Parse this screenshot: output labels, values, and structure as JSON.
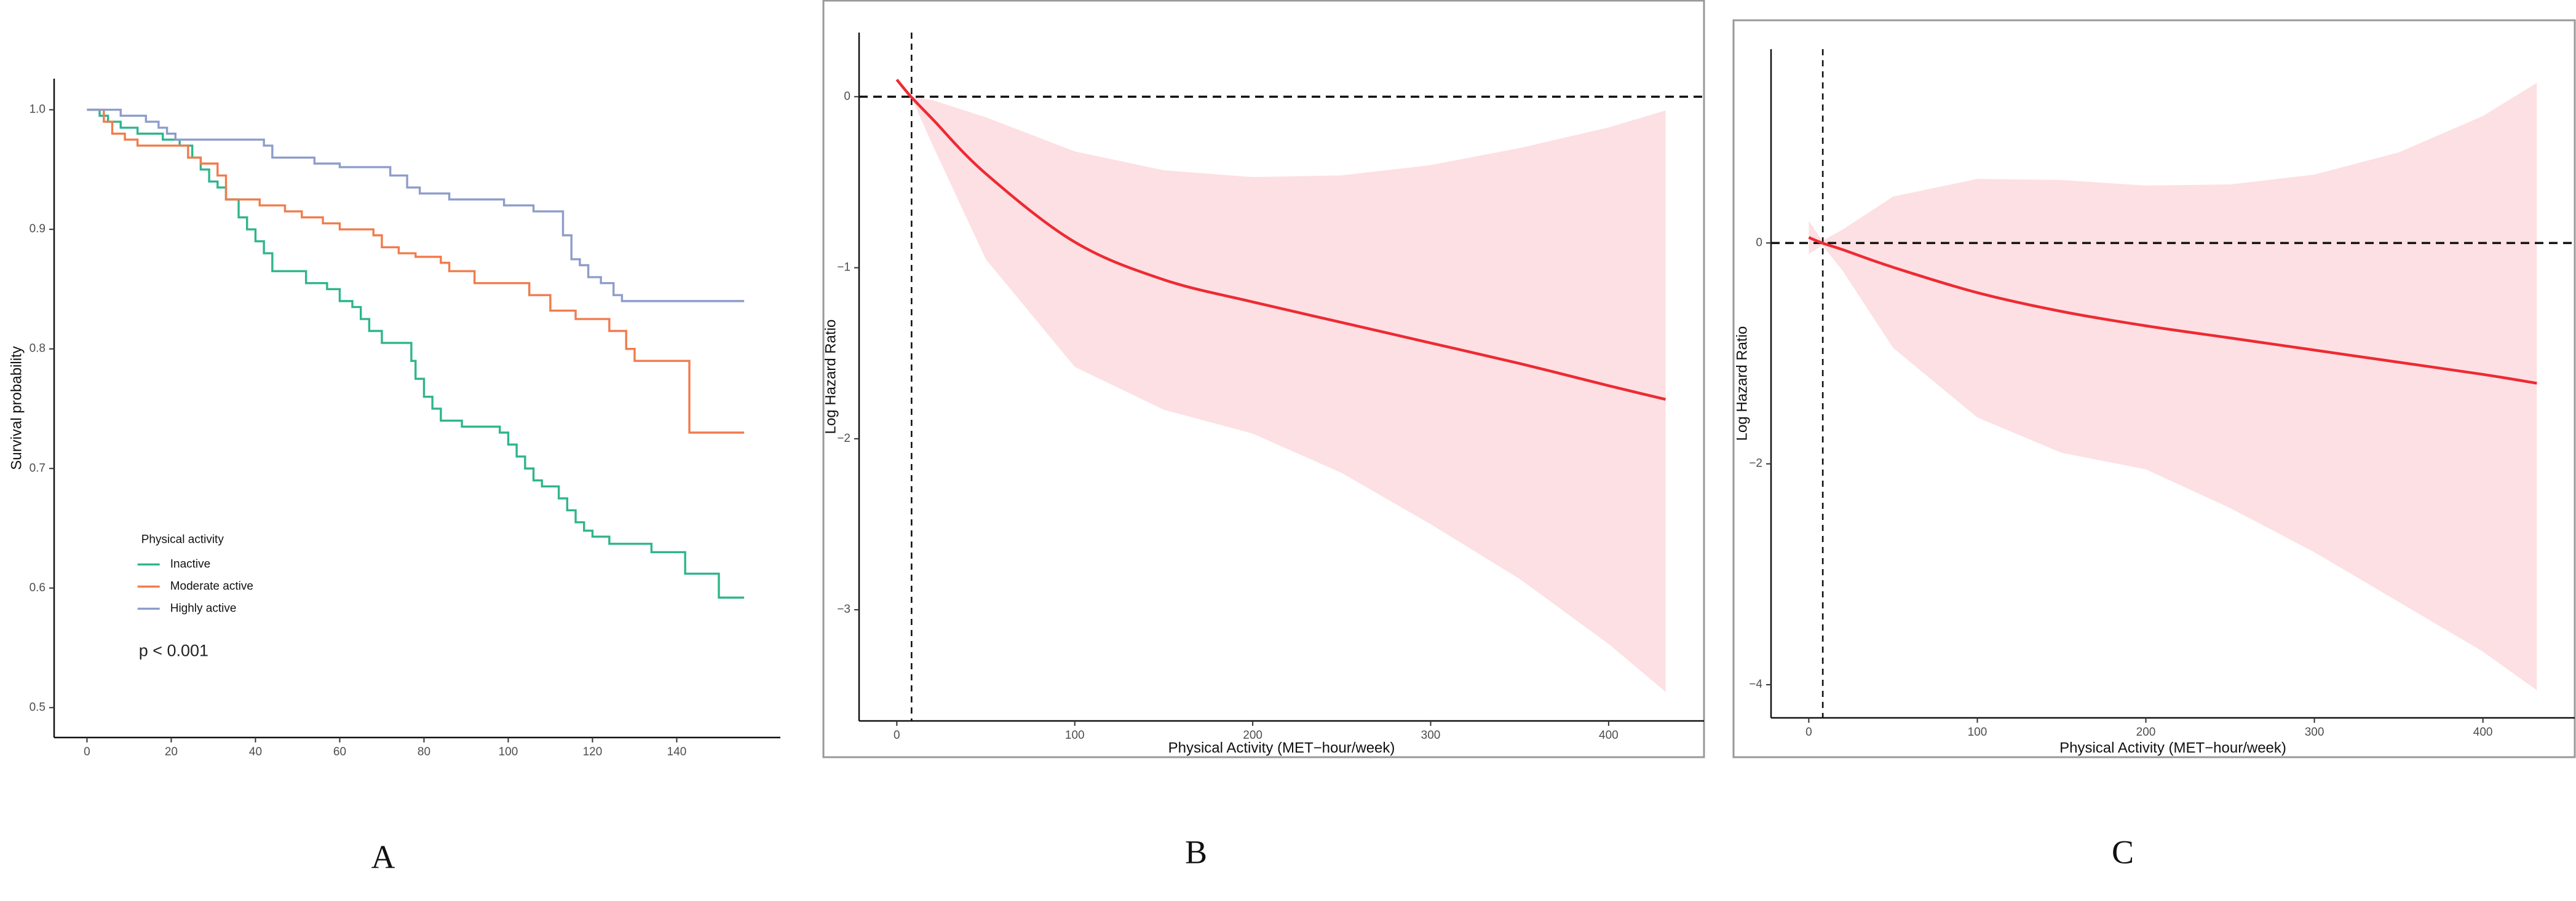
{
  "chart_data": [
    {
      "type": "step",
      "panel_label": "A",
      "ylabel": "Survival probability",
      "legend_title": "Physical activity",
      "annotation": "p < 0.001",
      "legend": "lower-left",
      "xlim": [
        -7.8,
        164.6
      ],
      "ylim": [
        0.475,
        1.026
      ],
      "xticks": [
        0,
        20,
        40,
        60,
        80,
        100,
        120,
        140
      ],
      "yticks": [
        0.5,
        0.6,
        0.7,
        0.8,
        0.9,
        {
          "value": 1,
          "label": "1.0"
        }
      ],
      "series": [
        {
          "name": "Inactive",
          "color": "#2fb58c",
          "x": [
            0,
            3,
            5,
            8,
            12,
            18,
            22,
            25,
            27,
            29,
            31,
            33,
            36,
            38,
            40,
            42,
            44,
            52,
            57,
            60,
            63,
            65,
            67,
            70,
            77,
            78,
            80,
            82,
            84,
            89,
            98,
            100,
            102,
            104,
            106,
            108,
            112,
            114,
            116,
            118,
            120,
            124,
            134,
            142,
            150,
            156
          ],
          "values": [
            1.0,
            0.995,
            0.99,
            0.985,
            0.98,
            0.975,
            0.97,
            0.96,
            0.95,
            0.94,
            0.935,
            0.925,
            0.91,
            0.9,
            0.89,
            0.88,
            0.865,
            0.855,
            0.85,
            0.84,
            0.835,
            0.825,
            0.815,
            0.805,
            0.79,
            0.775,
            0.76,
            0.75,
            0.74,
            0.735,
            0.73,
            0.72,
            0.71,
            0.7,
            0.69,
            0.685,
            0.675,
            0.665,
            0.655,
            0.648,
            0.643,
            0.637,
            0.63,
            0.612,
            0.592,
            0.592
          ]
        },
        {
          "name": "Moderate active",
          "color": "#f07c4e",
          "x": [
            0,
            4,
            6,
            9,
            12,
            24,
            27,
            31,
            33,
            41,
            47,
            51,
            56,
            60,
            68,
            70,
            74,
            78,
            84,
            86,
            92,
            105,
            110,
            116,
            124,
            128,
            130,
            143,
            156
          ],
          "values": [
            1.0,
            0.99,
            0.98,
            0.975,
            0.97,
            0.96,
            0.955,
            0.945,
            0.925,
            0.92,
            0.915,
            0.91,
            0.905,
            0.9,
            0.895,
            0.885,
            0.88,
            0.877,
            0.872,
            0.865,
            0.855,
            0.845,
            0.832,
            0.825,
            0.815,
            0.8,
            0.79,
            0.73,
            0.73
          ]
        },
        {
          "name": "Highly active",
          "color": "#8d9dcb",
          "x": [
            0,
            8,
            14,
            17,
            19,
            21,
            42,
            44,
            54,
            60,
            72,
            76,
            79,
            86,
            99,
            106,
            113,
            115,
            117,
            119,
            122,
            125,
            127,
            156
          ],
          "values": [
            1.0,
            0.995,
            0.99,
            0.985,
            0.98,
            0.975,
            0.97,
            0.96,
            0.955,
            0.952,
            0.945,
            0.935,
            0.93,
            0.925,
            0.92,
            0.915,
            0.895,
            0.875,
            0.87,
            0.86,
            0.855,
            0.845,
            0.84,
            0.84
          ]
        }
      ]
    },
    {
      "type": "band",
      "panel_label": "B",
      "ylabel": "Log Hazard Ratio",
      "xlabel": "Physical Activity (MET−hour/week)",
      "xlim": [
        -21.2,
        453.6
      ],
      "ylim": [
        -3.65,
        0.375
      ],
      "xticks": [
        0,
        100,
        200,
        300,
        400
      ],
      "yticks": [
        {
          "value": -3,
          "label": "−3"
        },
        {
          "value": -2,
          "label": "−2"
        },
        {
          "value": -1,
          "label": "−1"
        },
        0
      ],
      "hline": 0,
      "vline": 8.3,
      "color": "#ee2a33",
      "band_color": "#fde0e3",
      "x": [
        0,
        8,
        20,
        50,
        100,
        150,
        200,
        250,
        300,
        350,
        400,
        432
      ],
      "values": [
        0.1,
        0,
        -0.13,
        -0.45,
        -0.85,
        -1.07,
        -1.2,
        -1.32,
        -1.44,
        -1.56,
        -1.69,
        -1.77
      ],
      "upper": [
        0.1,
        0,
        -0.02,
        -0.12,
        -0.32,
        -0.43,
        -0.47,
        -0.46,
        -0.4,
        -0.3,
        -0.18,
        -0.08
      ],
      "lower": [
        0.1,
        0,
        -0.28,
        -0.95,
        -1.58,
        -1.83,
        -1.97,
        -2.2,
        -2.5,
        -2.82,
        -3.2,
        -3.48
      ]
    },
    {
      "type": "band",
      "panel_label": "C",
      "ylabel": "Log Hazard Ratio",
      "xlabel": "Physical Activity (MET−hour/week)",
      "xlim": [
        -22.4,
        454.5
      ],
      "ylim": [
        -4.3,
        1.755
      ],
      "xticks": [
        0,
        100,
        200,
        300,
        400
      ],
      "yticks": [
        {
          "value": -4,
          "label": "−4"
        },
        {
          "value": -2,
          "label": "−2"
        },
        0
      ],
      "hline": 0,
      "vline": 8.3,
      "color": "#ee2a33",
      "band_color": "#fde0e3",
      "x": [
        0,
        8,
        20,
        50,
        100,
        150,
        200,
        250,
        300,
        350,
        400,
        432
      ],
      "values": [
        0.05,
        0,
        -0.06,
        -0.22,
        -0.45,
        -0.62,
        -0.75,
        -0.86,
        -0.97,
        -1.08,
        -1.19,
        -1.27
      ],
      "upper": [
        0.2,
        0.02,
        0.12,
        0.42,
        0.58,
        0.57,
        0.52,
        0.53,
        0.62,
        0.82,
        1.15,
        1.45
      ],
      "lower": [
        -0.1,
        -0.02,
        -0.25,
        -0.95,
        -1.58,
        -1.9,
        -2.05,
        -2.4,
        -2.8,
        -3.25,
        -3.7,
        -4.05
      ]
    }
  ]
}
